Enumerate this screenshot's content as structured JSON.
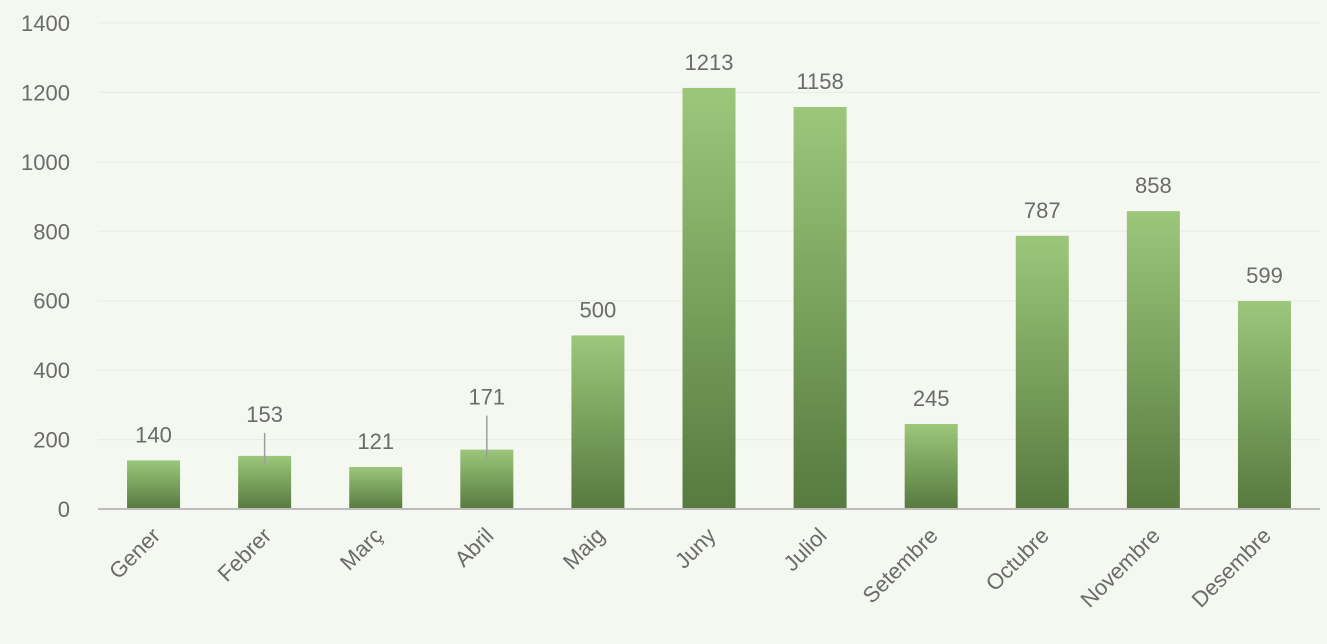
{
  "chart_data": {
    "type": "bar",
    "title": "",
    "xlabel": "",
    "ylabel": "",
    "categories": [
      "Gener",
      "Febrer",
      "Març",
      "Abril",
      "Maig",
      "Juny",
      "Juliol",
      "Setembre",
      "Octubre",
      "Novembre",
      "Desembre"
    ],
    "values": [
      140,
      153,
      121,
      171,
      500,
      1213,
      1158,
      245,
      787,
      858,
      599
    ],
    "ylim": [
      0,
      1400
    ],
    "yticks": [
      "0",
      "200",
      "400",
      "600",
      "800",
      "1000",
      "1200",
      "1400"
    ],
    "grid": true,
    "legend": "none",
    "colors": {
      "bar_top": "#9cc77b",
      "bar_bottom": "#577a3f",
      "gridline": "#e6eee0",
      "axis": "#bdbdbd",
      "text": "#6b6b6b",
      "background": "#f4f8f1"
    }
  }
}
